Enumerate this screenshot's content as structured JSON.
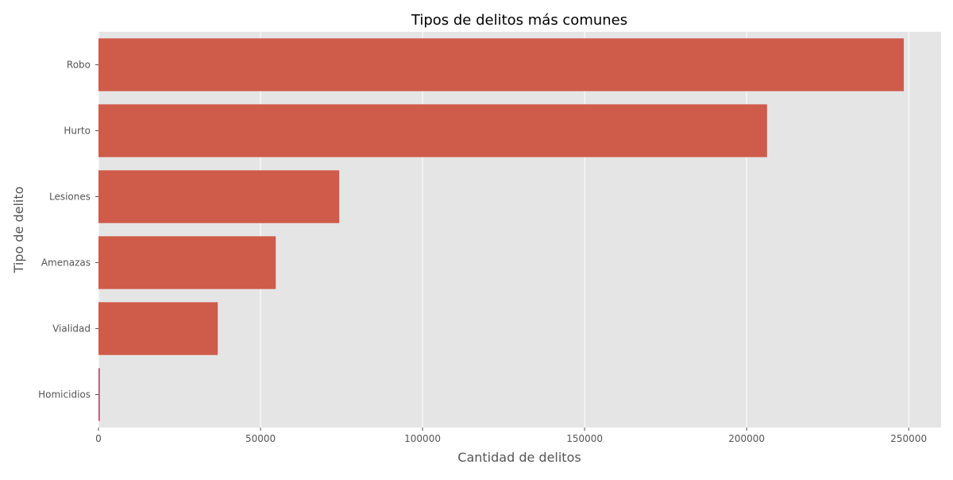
{
  "chart_data": {
    "type": "bar",
    "orientation": "horizontal",
    "title": "Tipos de delitos más comunes",
    "xlabel": "Cantidad de delitos",
    "ylabel": "Tipo de delito",
    "categories": [
      "Robo",
      "Hurto",
      "Lesiones",
      "Amenazas",
      "Vialidad",
      "Homicidios"
    ],
    "values": [
      248500,
      206300,
      74300,
      54700,
      36800,
      400
    ],
    "xlim": [
      0,
      260000
    ],
    "xticks": [
      0,
      50000,
      100000,
      150000,
      200000,
      250000
    ],
    "xtick_labels": [
      "0",
      "50000",
      "100000",
      "150000",
      "200000",
      "250000"
    ],
    "grid": true,
    "legend": "none",
    "colors": {
      "bar": "#cf5b4a",
      "bar_small": "#c2406a",
      "plot_background": "#e5e5e5",
      "grid": "#ffffff",
      "text": "#555555",
      "title": "#000000"
    }
  }
}
